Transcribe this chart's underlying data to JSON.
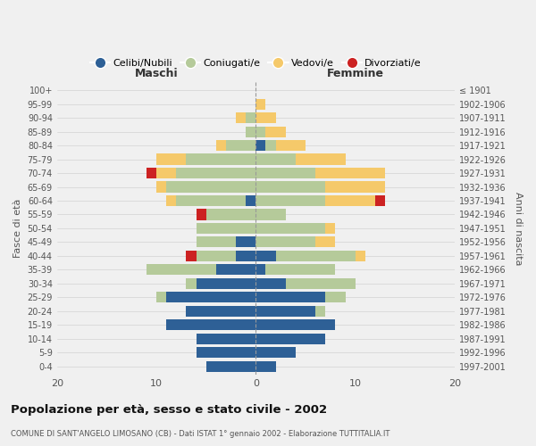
{
  "age_groups": [
    "0-4",
    "5-9",
    "10-14",
    "15-19",
    "20-24",
    "25-29",
    "30-34",
    "35-39",
    "40-44",
    "45-49",
    "50-54",
    "55-59",
    "60-64",
    "65-69",
    "70-74",
    "75-79",
    "80-84",
    "85-89",
    "90-94",
    "95-99",
    "100+"
  ],
  "birth_years": [
    "1997-2001",
    "1992-1996",
    "1987-1991",
    "1982-1986",
    "1977-1981",
    "1972-1976",
    "1967-1971",
    "1962-1966",
    "1957-1961",
    "1952-1956",
    "1947-1951",
    "1942-1946",
    "1937-1941",
    "1932-1936",
    "1927-1931",
    "1922-1926",
    "1917-1921",
    "1912-1916",
    "1907-1911",
    "1902-1906",
    "≤ 1901"
  ],
  "male": {
    "celibi": [
      5,
      6,
      6,
      9,
      7,
      9,
      6,
      4,
      2,
      2,
      0,
      0,
      1,
      0,
      0,
      0,
      0,
      0,
      0,
      0,
      0
    ],
    "coniugati": [
      0,
      0,
      0,
      0,
      0,
      1,
      1,
      7,
      4,
      4,
      6,
      5,
      7,
      9,
      8,
      7,
      3,
      1,
      1,
      0,
      0
    ],
    "vedovi": [
      0,
      0,
      0,
      0,
      0,
      0,
      0,
      0,
      0,
      0,
      0,
      0,
      1,
      1,
      2,
      3,
      1,
      0,
      1,
      0,
      0
    ],
    "divorziati": [
      0,
      0,
      0,
      0,
      0,
      0,
      0,
      0,
      1,
      0,
      0,
      1,
      0,
      0,
      1,
      0,
      0,
      0,
      0,
      0,
      0
    ]
  },
  "female": {
    "nubili": [
      2,
      4,
      7,
      8,
      6,
      7,
      3,
      1,
      2,
      0,
      0,
      0,
      0,
      0,
      0,
      0,
      1,
      0,
      0,
      0,
      0
    ],
    "coniugate": [
      0,
      0,
      0,
      0,
      1,
      2,
      7,
      7,
      8,
      6,
      7,
      3,
      7,
      7,
      6,
      4,
      1,
      1,
      0,
      0,
      0
    ],
    "vedove": [
      0,
      0,
      0,
      0,
      0,
      0,
      0,
      0,
      1,
      2,
      1,
      0,
      5,
      6,
      7,
      5,
      3,
      2,
      2,
      1,
      0
    ],
    "divorziate": [
      0,
      0,
      0,
      0,
      0,
      0,
      0,
      0,
      0,
      0,
      0,
      0,
      1,
      0,
      0,
      0,
      0,
      0,
      0,
      0,
      0
    ]
  },
  "colors": {
    "celibi": "#2e6096",
    "coniugati": "#b5ca9a",
    "vedovi": "#f5c96a",
    "divorziati": "#cc2222"
  },
  "xlim": 20,
  "title": "Popolazione per età, sesso e stato civile - 2002",
  "subtitle": "COMUNE DI SANT'ANGELO LIMOSANO (CB) - Dati ISTAT 1° gennaio 2002 - Elaborazione TUTTITALIA.IT",
  "ylabel_left": "Fasce di età",
  "ylabel_right": "Anni di nascita",
  "legend_labels": [
    "Celibi/Nubili",
    "Coniugati/e",
    "Vedovi/e",
    "Divorziati/e"
  ],
  "background_color": "#f0f0f0"
}
